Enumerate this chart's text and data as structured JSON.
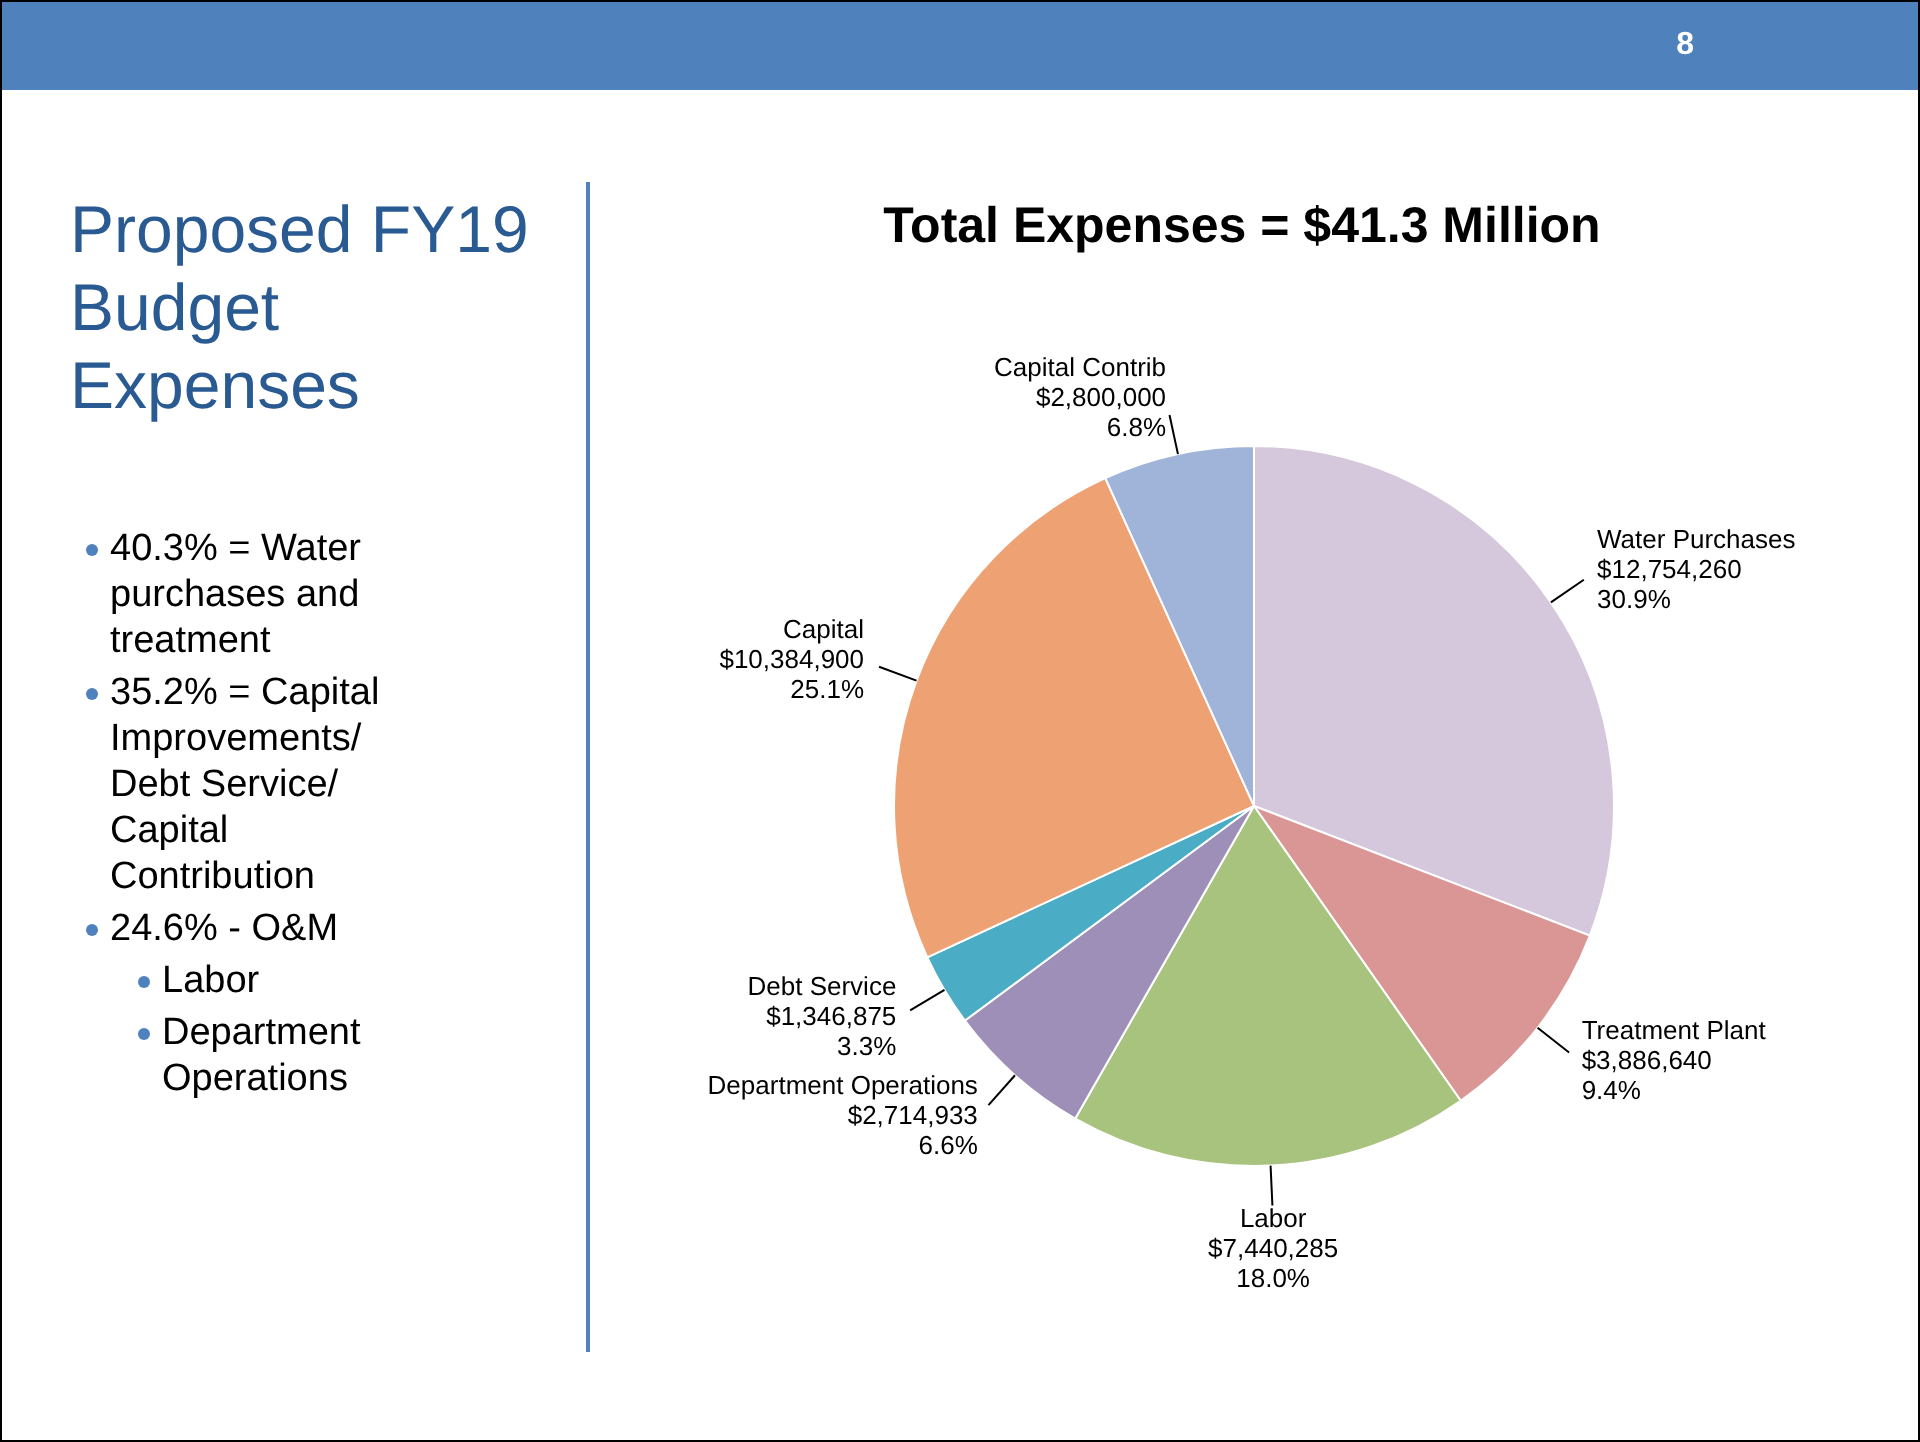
{
  "chart_data": {
    "type": "pie",
    "title": "Total Expenses = $41.3 Million",
    "subtitle": "Proposed FY19 Budget Expenses",
    "categories": [
      "Water Purchases",
      "Treatment Plant",
      "Labor",
      "Department Operations",
      "Debt Service",
      "Capital",
      "Capital Contrib"
    ],
    "values": [
      12754260,
      3886640,
      7440285,
      2714933,
      1346875,
      10384900,
      2800000
    ],
    "value_labels": [
      "$12,754,260\n30.9%",
      "$3,886,640\n9.4%",
      "$7,440,285\n18.0%",
      "$2,714,933\n6.6%",
      "$1,346,875\n3.3%",
      "$10,384,900\n25.1%",
      "$2,800,000\n6.8%"
    ],
    "colors": [
      "#d6c8dc",
      "#d99694",
      "#a8c37e",
      "#9d8fb8",
      "#4bacc6",
      "#eea274",
      "#9fb4d8"
    ],
    "annotations": [
      "8",
      "40.3% = Water purchases and treatment",
      "35.2% = Capital Improvements/ Debt Service/ Capital Contribution",
      "24.6% - O&M",
      "Labor",
      "Department Operations"
    ]
  }
}
